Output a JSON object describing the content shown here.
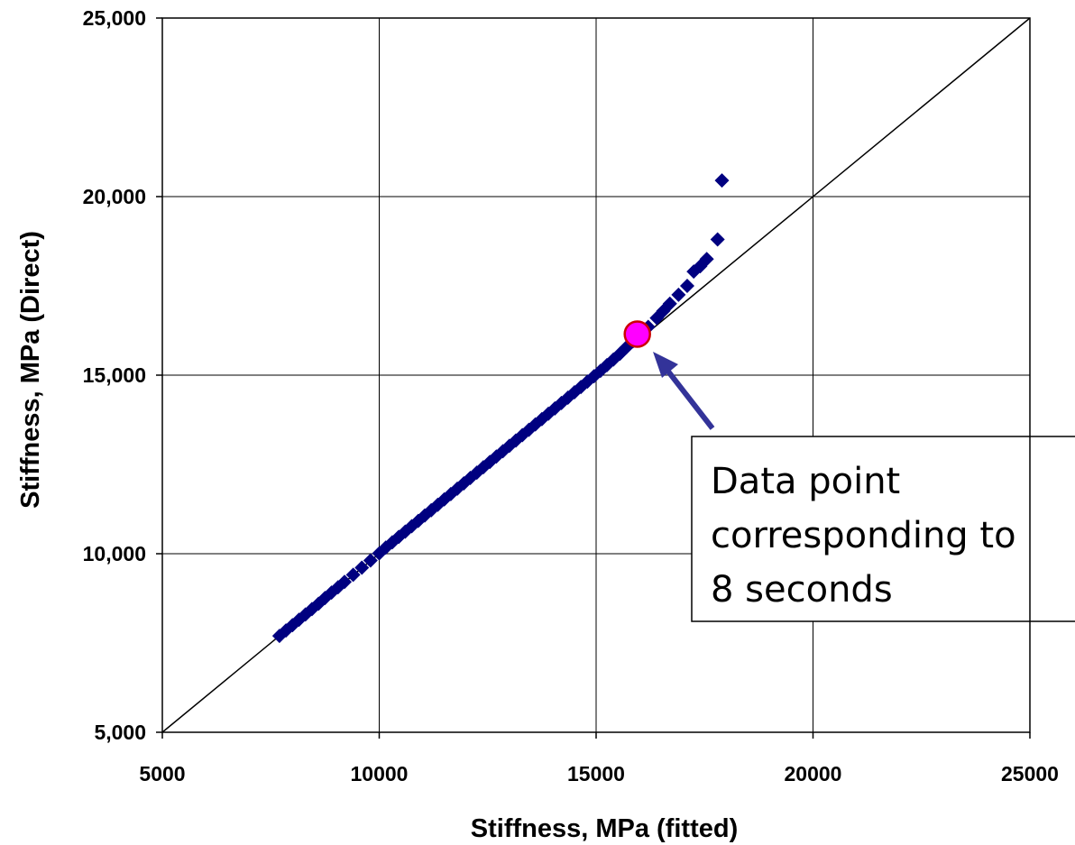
{
  "chart_data": {
    "type": "scatter",
    "title": "",
    "xlabel": "Stiffness, MPa (fitted)",
    "ylabel": "Stiffness, MPa (Direct)",
    "xlim": [
      5000,
      25000
    ],
    "ylim": [
      5000,
      25000
    ],
    "x_ticks": [
      5000,
      10000,
      15000,
      20000,
      25000
    ],
    "x_tick_labels": [
      "5000",
      "10000",
      "15000",
      "20000",
      "25000"
    ],
    "y_ticks": [
      5000,
      10000,
      15000,
      20000,
      25000
    ],
    "y_tick_labels": [
      "5,000",
      "10,000",
      "15,000",
      "20,000",
      "25,000"
    ],
    "grid": true,
    "legend": "none",
    "colors": {
      "points": "#000080",
      "highlight_fill": "#ff00ff",
      "highlight_stroke": "#cc0000",
      "arrow": "#333399",
      "equality_line": "#000000"
    },
    "reference_line": {
      "type": "equality",
      "points": [
        [
          5000,
          5000
        ],
        [
          25000,
          25000
        ]
      ]
    },
    "series": [
      {
        "marker": "diamond",
        "x": [
          7700,
          7850,
          8000,
          8150,
          8300,
          8450,
          8600,
          8750,
          8900,
          9050,
          9200,
          9400,
          9600,
          9800,
          10000,
          10150,
          10300,
          10450,
          10600,
          10750,
          10900,
          11050,
          11200,
          11350,
          11500,
          11650,
          11800,
          11950,
          12100,
          12250,
          12400,
          12550,
          12700,
          12850,
          13000,
          13150,
          13300,
          13450,
          13600,
          13750,
          13900,
          14050,
          14200,
          14350,
          14500,
          14650,
          14800,
          14950,
          15100,
          15250,
          15400,
          15550,
          15700,
          15850,
          16000,
          16200,
          16400,
          16550,
          16700,
          16900,
          17100,
          17250,
          17400,
          17550,
          17800,
          17900
        ],
        "y": [
          7700,
          7850,
          8000,
          8150,
          8300,
          8450,
          8600,
          8760,
          8910,
          9060,
          9210,
          9410,
          9610,
          9810,
          10010,
          10170,
          10320,
          10470,
          10620,
          10770,
          10920,
          11070,
          11220,
          11370,
          11520,
          11670,
          11820,
          11970,
          12120,
          12270,
          12420,
          12570,
          12720,
          12870,
          13020,
          13170,
          13320,
          13470,
          13620,
          13770,
          13920,
          14070,
          14220,
          14370,
          14520,
          14670,
          14820,
          14970,
          15120,
          15280,
          15440,
          15600,
          15780,
          15950,
          16120,
          16350,
          16600,
          16800,
          17000,
          17250,
          17500,
          17900,
          18050,
          18250,
          18800,
          20450
        ]
      }
    ],
    "highlight": {
      "x": 15950,
      "y": 16150
    },
    "annotation": {
      "lines": [
        "Data point",
        "corresponding to",
        "8 seconds"
      ]
    }
  }
}
